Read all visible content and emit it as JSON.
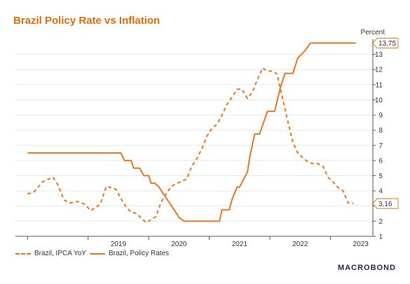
{
  "title": "Brazil Policy Rate vs Inflation",
  "logo": "MACROBOND",
  "colors": {
    "accent": "#e87722",
    "title": "#e36c0a",
    "grid": "#e8e8e8",
    "axis": "#555555"
  },
  "chart_data": {
    "type": "line",
    "title": "Brazil Policy Rate vs Inflation",
    "ylabel": "Percent",
    "ylim": [
      1,
      14
    ],
    "xlim": [
      2017.8,
      2023.7
    ],
    "yticks": [
      1,
      2,
      3,
      4,
      5,
      6,
      7,
      8,
      9,
      10,
      11,
      12,
      13
    ],
    "xtick_labels": [
      "2019",
      "2020",
      "2021",
      "2022",
      "2023"
    ],
    "xtick_positions": [
      2019,
      2020,
      2021,
      2022,
      2023
    ],
    "grid": true,
    "legend_position": "bottom-left",
    "end_labels": [
      {
        "series": "Brazil, Policy Rates",
        "text": "13,75",
        "value": 13.75
      },
      {
        "series": "Brazil, IPCA YoY",
        "text": "3,16",
        "value": 3.16
      }
    ],
    "series": [
      {
        "name": "Brazil, IPCA YoY",
        "style": "dashed",
        "x": [
          2018.0,
          2018.1,
          2018.25,
          2018.42,
          2018.5,
          2018.6,
          2018.7,
          2018.83,
          2018.95,
          2019.04,
          2019.2,
          2019.3,
          2019.38,
          2019.46,
          2019.54,
          2019.63,
          2019.71,
          2019.8,
          2019.88,
          2019.96,
          2020.04,
          2020.12,
          2020.2,
          2020.3,
          2020.38,
          2020.46,
          2020.54,
          2020.63,
          2020.71,
          2020.79,
          2020.88,
          2020.96,
          2021.04,
          2021.13,
          2021.21,
          2021.29,
          2021.38,
          2021.46,
          2021.54,
          2021.63,
          2021.71,
          2021.79,
          2021.88,
          2021.96,
          2022.04,
          2022.12,
          2022.21,
          2022.29,
          2022.38,
          2022.46,
          2022.54,
          2022.63,
          2022.71,
          2022.79,
          2022.88,
          2022.96,
          2023.04,
          2023.13,
          2023.21,
          2023.29,
          2023.38
        ],
        "y": [
          3.8,
          3.9,
          4.6,
          4.9,
          4.4,
          3.4,
          3.2,
          3.3,
          3.1,
          2.7,
          3.1,
          4.3,
          4.2,
          4.1,
          3.5,
          2.9,
          2.6,
          2.5,
          2.2,
          1.9,
          2.1,
          2.3,
          3.2,
          3.9,
          4.3,
          4.5,
          4.6,
          4.8,
          5.6,
          6.1,
          6.8,
          7.6,
          8.1,
          8.4,
          9.0,
          9.7,
          10.2,
          10.7,
          10.7,
          10.1,
          10.5,
          11.3,
          12.1,
          11.9,
          11.9,
          11.7,
          10.1,
          8.7,
          7.2,
          6.5,
          6.2,
          5.9,
          5.8,
          5.8,
          5.6,
          4.9,
          4.6,
          4.2,
          4.0,
          3.2,
          3.16
        ]
      },
      {
        "name": "Brazil, Policy Rates",
        "style": "solid",
        "x": [
          2018.0,
          2018.96,
          2019.0,
          2019.54,
          2019.6,
          2019.71,
          2019.75,
          2019.85,
          2019.92,
          2020.0,
          2020.04,
          2020.1,
          2020.17,
          2020.25,
          2020.38,
          2020.5,
          2020.58,
          2020.7,
          2021.17,
          2021.21,
          2021.33,
          2021.38,
          2021.46,
          2021.5,
          2021.63,
          2021.67,
          2021.75,
          2021.83,
          2021.96,
          2022.08,
          2022.17,
          2022.25,
          2022.38,
          2022.46,
          2022.58,
          2022.67,
          2023.42
        ],
        "y": [
          6.5,
          6.5,
          6.5,
          6.5,
          6.0,
          6.0,
          5.5,
          5.5,
          5.0,
          5.0,
          4.5,
          4.5,
          4.25,
          3.75,
          3.0,
          2.25,
          2.0,
          2.0,
          2.0,
          2.75,
          2.75,
          3.5,
          4.25,
          4.25,
          5.25,
          6.25,
          7.75,
          7.75,
          9.25,
          9.25,
          10.75,
          11.75,
          11.75,
          12.75,
          13.25,
          13.75,
          13.75
        ]
      }
    ]
  }
}
